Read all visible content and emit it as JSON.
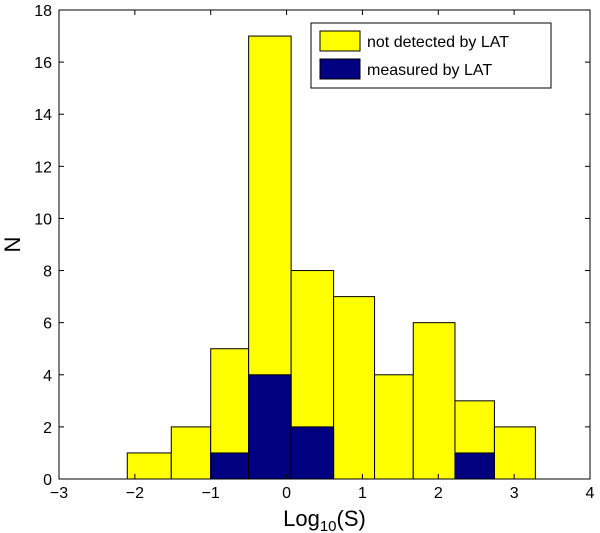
{
  "chart_data": {
    "type": "bar",
    "title": "",
    "xlabel_main": "Log",
    "xlabel_sub": "10",
    "xlabel_tail": "(S)",
    "ylabel": "N",
    "xlim": [
      -3,
      4
    ],
    "ylim": [
      0,
      18
    ],
    "x_ticks": [
      "−3",
      "−2",
      "−1",
      "0",
      "1",
      "2",
      "3",
      "4"
    ],
    "y_ticks": [
      "0",
      "2",
      "4",
      "6",
      "8",
      "10",
      "12",
      "14",
      "16",
      "18"
    ],
    "bin_edges": [
      -2.1,
      -1.52,
      -1.0,
      -0.5,
      0.06,
      0.62,
      1.16,
      1.67,
      2.22,
      2.74,
      3.28
    ],
    "series": [
      {
        "name": "not detected by LAT",
        "color": "#ffff00",
        "values": [
          1,
          2,
          5,
          17,
          8,
          7,
          4,
          6,
          3,
          2
        ]
      },
      {
        "name": "measured by LAT",
        "color": "#000080",
        "values": [
          0,
          0,
          1,
          4,
          2,
          0,
          0,
          0,
          1,
          0
        ]
      }
    ],
    "legend_position": "top-right",
    "grid": false
  }
}
